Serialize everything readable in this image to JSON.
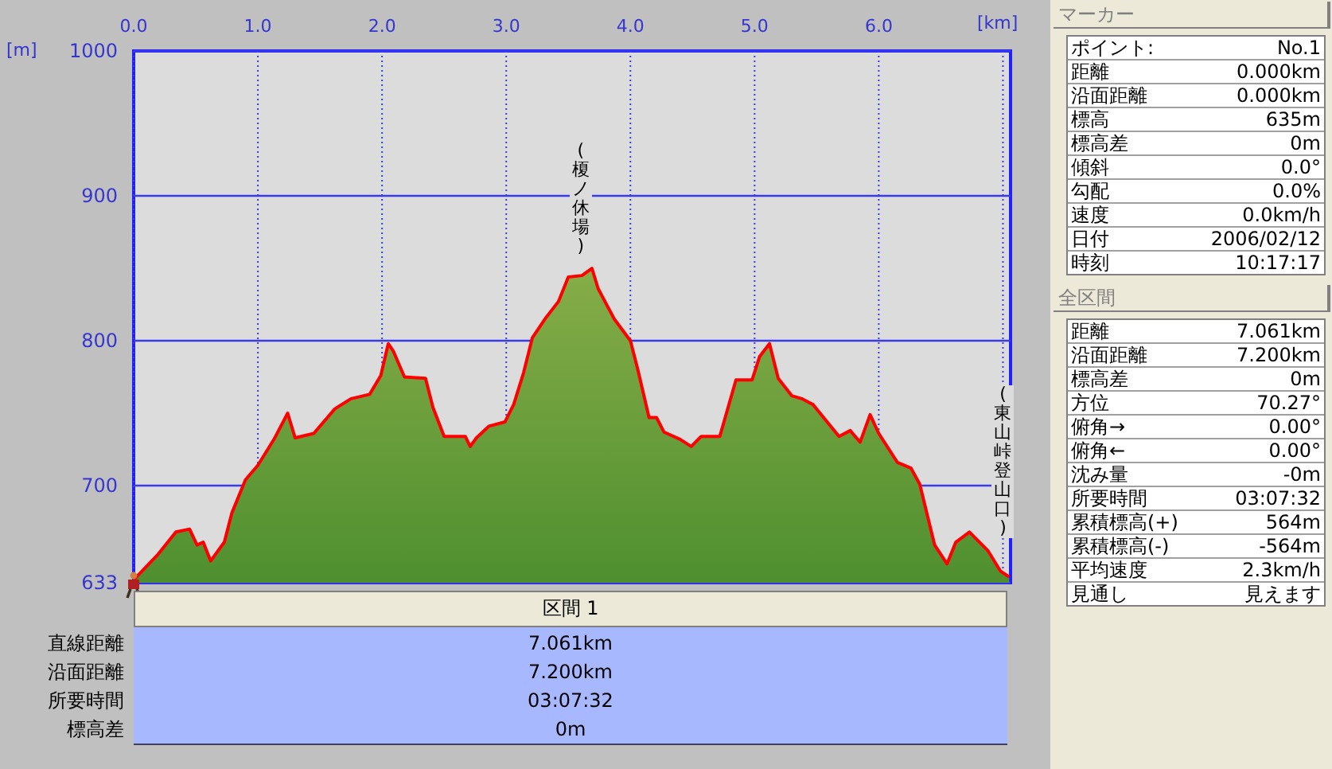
{
  "chart_data": [
    {
      "type": "area",
      "xlabel": "[km]",
      "ylabel": "[m]",
      "x": [
        0,
        0.19,
        0.34,
        0.45,
        0.51,
        0.56,
        0.62,
        0.73,
        0.79,
        0.9,
        1.0,
        1.13,
        1.24,
        1.3,
        1.45,
        1.62,
        1.75,
        1.9,
        1.99,
        2.05,
        2.09,
        2.18,
        2.35,
        2.41,
        2.5,
        2.67,
        2.71,
        2.76,
        2.86,
        2.99,
        3.06,
        3.14,
        3.21,
        3.32,
        3.42,
        3.5,
        3.61,
        3.69,
        3.74,
        3.87,
        4.0,
        4.06,
        4.15,
        4.21,
        4.27,
        4.4,
        4.49,
        4.57,
        4.72,
        4.85,
        4.98,
        5.04,
        5.12,
        5.19,
        5.3,
        5.38,
        5.47,
        5.68,
        5.77,
        5.85,
        5.93,
        6.0,
        6.15,
        6.26,
        6.33,
        6.45,
        6.55,
        6.62,
        6.73,
        6.88,
        6.98,
        7.05
      ],
      "series": [
        {
          "color": "#ff0000",
          "values": [
            635,
            652,
            668,
            670,
            659,
            661,
            648,
            661,
            681,
            704,
            714,
            732,
            750,
            733,
            736,
            753,
            760,
            763,
            776,
            798,
            793,
            775,
            774,
            754,
            734,
            734,
            727,
            733,
            741,
            744,
            756,
            778,
            802,
            816,
            827,
            844,
            845,
            850,
            836,
            815,
            800,
            780,
            747,
            747,
            737,
            732,
            727,
            734,
            734,
            773,
            773,
            789,
            798,
            774,
            762,
            760,
            756,
            734,
            738,
            730,
            749,
            736,
            716,
            712,
            701,
            659,
            646,
            661,
            668,
            655,
            641,
            637
          ]
        }
      ],
      "xlim": [
        0,
        7.061
      ],
      "ylim": [
        633,
        1000
      ],
      "xticks": [
        {
          "value": 0,
          "label": "0.0"
        },
        {
          "value": 1,
          "label": "1.0"
        },
        {
          "value": 2,
          "label": "2.0"
        },
        {
          "value": 3,
          "label": "3.0"
        },
        {
          "value": 4,
          "label": "4.0"
        },
        {
          "value": 5,
          "label": "5.0"
        },
        {
          "value": 6,
          "label": "6.0"
        },
        {
          "value": 7,
          "label": null
        }
      ],
      "yticks": [
        633,
        700,
        800,
        900,
        1000
      ],
      "grid": true,
      "annotations": [
        {
          "text": "(榎ノ休場)",
          "x": 3.6,
          "y": 850
        },
        {
          "text": "(東山峠登山口)",
          "x": 7.0,
          "y": 640
        }
      ]
    },
    {
      "type": "other",
      "title": "区間 1",
      "annotations": [
        "直線距離",
        "7.061km",
        "沿面距離",
        "7.200km",
        "所要時間",
        "03:07:32",
        "標高差",
        "0m"
      ]
    },
    {
      "type": "other",
      "title": "マーカー",
      "annotations": [
        "ポイント:",
        "No.1",
        "距離",
        "0.000km",
        "沿面距離",
        "0.000km",
        "標高",
        "635m",
        "標高差",
        "0m",
        "傾斜",
        "0.0°",
        "勾配",
        "0.0%",
        "速度",
        "0.0km/h",
        "日付",
        "2006/02/12",
        "時刻",
        "10:17:17"
      ]
    },
    {
      "type": "other",
      "title": "全区間",
      "annotations": [
        "距離",
        "7.061km",
        "沿面距離",
        "7.200km",
        "標高差",
        "0m",
        "方位",
        "70.27°",
        "俯角→",
        "0.00°",
        "俯角←",
        "0.00°",
        "沈み量",
        "-0m",
        "所要時間",
        "03:07:32",
        "累積標高(+)",
        "564m",
        "累積標高(-)",
        "-564m",
        "平均速度",
        "2.3km/h",
        "見通し",
        "見えます"
      ]
    }
  ]
}
